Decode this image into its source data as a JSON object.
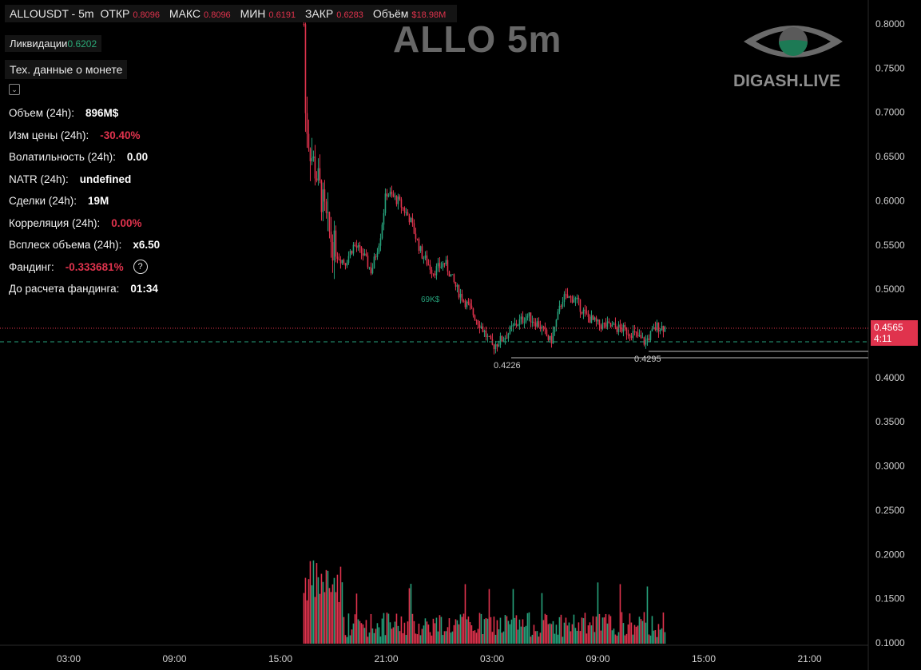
{
  "header": {
    "symbol": "ALLOUSDT - 5m",
    "open_label": "ОТКР",
    "open": "0.8096",
    "high_label": "МАКС",
    "high": "0.8096",
    "low_label": "МИН",
    "low": "0.6191",
    "close_label": "ЗАКР",
    "close": "0.6283",
    "volume_label": "Объём",
    "volume": "$18.98M"
  },
  "liquidations": {
    "label": "Ликвидации",
    "value": "0.6202"
  },
  "tech_button": "Тех. данные о монете",
  "stats": [
    {
      "label": "Объем (24h):",
      "value": "896M$",
      "negative": false
    },
    {
      "label": "Изм цены  (24h):",
      "value": "-30.40%",
      "negative": true
    },
    {
      "label": "Волатильность  (24h):",
      "value": "0.00",
      "negative": false
    },
    {
      "label": "NATR (24h):",
      "value": "undefined",
      "negative": false
    },
    {
      "label": "Сделки (24h):",
      "value": "19M",
      "negative": false
    },
    {
      "label": "Корреляция (24h):",
      "value": "0.00%",
      "negative": true
    },
    {
      "label": "Всплеск объема (24h):",
      "value": "x6.50",
      "negative": false
    },
    {
      "label": "Фандинг:",
      "value": "-0.333681%",
      "negative": true
    },
    {
      "label": "До расчета фандинга:",
      "value": "01:34",
      "negative": false
    }
  ],
  "watermark": {
    "title": "ALLO 5m",
    "brand": "DIGASH.LIVE"
  },
  "price_axis": {
    "ticks": [
      "0.8000",
      "0.7500",
      "0.7000",
      "0.6500",
      "0.6000",
      "0.5500",
      "0.5000",
      "0.4500",
      "0.4000",
      "0.3500",
      "0.3000",
      "0.2500",
      "0.2000",
      "0.1500",
      "0.1000"
    ],
    "current_price": "0.4565",
    "countdown": "4:11"
  },
  "time_axis": {
    "ticks": [
      "03:00",
      "09:00",
      "15:00",
      "21:00",
      "03:00",
      "09:00",
      "15:00",
      "21:00"
    ]
  },
  "annotations": {
    "low1": "0.4226",
    "low2": "0.4295",
    "vol_label": "69K$"
  },
  "colors": {
    "up": "#26a17b",
    "down": "#e0334d",
    "background": "#000000"
  },
  "chart_data": {
    "type": "candlestick",
    "price_range": [
      0.1,
      0.8
    ],
    "current_price": 0.4565,
    "support_levels": [
      0.4226,
      0.4295
    ],
    "close_path": [
      [
        "16:20",
        0.8
      ],
      [
        "16:25",
        0.7
      ],
      [
        "16:40",
        0.66
      ],
      [
        "17:10",
        0.62
      ],
      [
        "17:40",
        0.57
      ],
      [
        "18:10",
        0.54
      ],
      [
        "18:40",
        0.53
      ],
      [
        "19:10",
        0.55
      ],
      [
        "19:40",
        0.54
      ],
      [
        "20:10",
        0.52
      ],
      [
        "20:40",
        0.56
      ],
      [
        "21:00",
        0.61
      ],
      [
        "21:40",
        0.6
      ],
      [
        "22:20",
        0.58
      ],
      [
        "23:00",
        0.54
      ],
      [
        "23:40",
        0.52
      ],
      [
        "00:20",
        0.53
      ],
      [
        "01:00",
        0.5
      ],
      [
        "01:40",
        0.48
      ],
      [
        "02:20",
        0.46
      ],
      [
        "03:00",
        0.435
      ],
      [
        "03:40",
        0.445
      ],
      [
        "04:20",
        0.46
      ],
      [
        "05:00",
        0.47
      ],
      [
        "05:40",
        0.46
      ],
      [
        "06:20",
        0.44
      ],
      [
        "07:00",
        0.49
      ],
      [
        "07:40",
        0.49
      ],
      [
        "08:20",
        0.47
      ],
      [
        "09:00",
        0.46
      ],
      [
        "09:40",
        0.458
      ],
      [
        "10:20",
        0.455
      ],
      [
        "11:00",
        0.45
      ],
      [
        "11:40",
        0.44
      ],
      [
        "12:20",
        0.458
      ],
      [
        "12:50",
        0.4565
      ]
    ]
  }
}
